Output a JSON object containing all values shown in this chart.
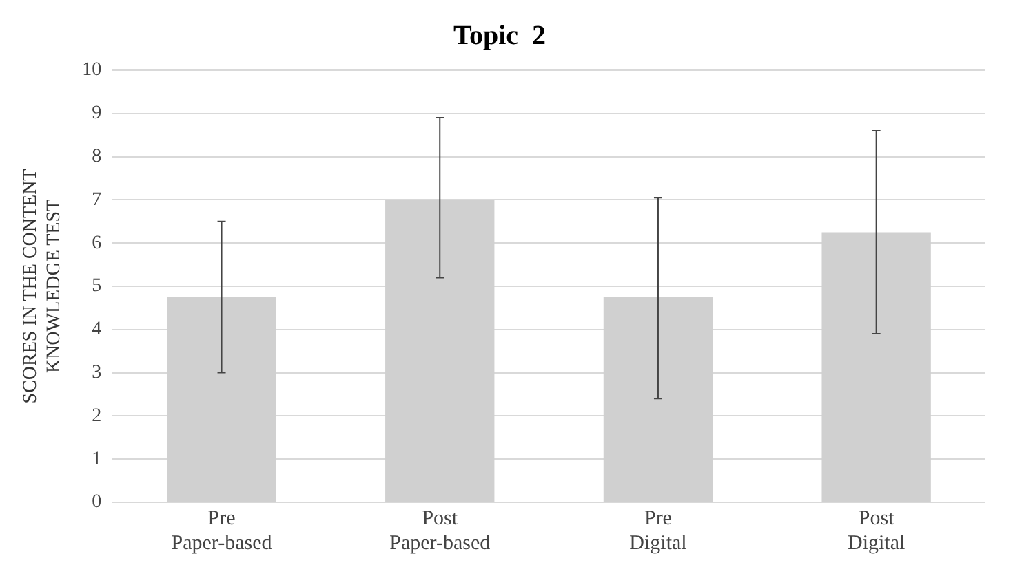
{
  "chart_data": {
    "type": "bar",
    "title": "Topic  2",
    "ylabel": "SCORES IN THE CONTENT\nKNOWLEDGE TEST",
    "categories": [
      "Pre\nPaper-based",
      "Post\nPaper-based",
      "Pre\nDigital",
      "Post\nDigital"
    ],
    "values": [
      4.75,
      7.0,
      4.75,
      6.25
    ],
    "errors": [
      [
        3.0,
        6.5
      ],
      [
        5.2,
        8.9
      ],
      [
        2.4,
        7.05
      ],
      [
        3.9,
        8.6
      ]
    ],
    "color": "#d0d0d0",
    "ylim": [
      0,
      10
    ],
    "yticks": [
      0,
      1,
      2,
      3,
      4,
      5,
      6,
      7,
      8,
      9,
      10
    ],
    "grid": "y"
  }
}
